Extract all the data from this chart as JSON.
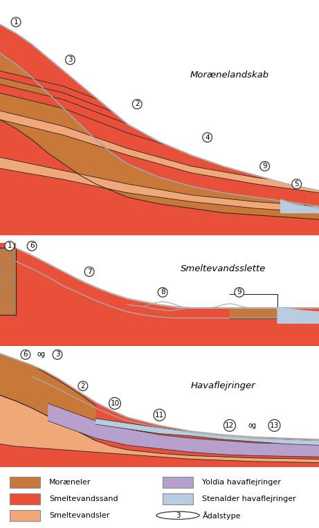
{
  "colors": {
    "moraeneler": "#c8793a",
    "smeltevandssand": "#e8503a",
    "smeltevandsler": "#f0a878",
    "yoldia": "#b8a0cc",
    "stenalder": "#b8cce0",
    "water": "#b8cce0",
    "white": "#ffffff",
    "black": "#000000",
    "bg": "#ffffff",
    "dark": "#222222",
    "panel_bg": "#ffffff"
  },
  "panel1_title": "Morænelandskab",
  "panel2_title": "Smeltevandsslette",
  "panel3_title": "Havaflejringer"
}
